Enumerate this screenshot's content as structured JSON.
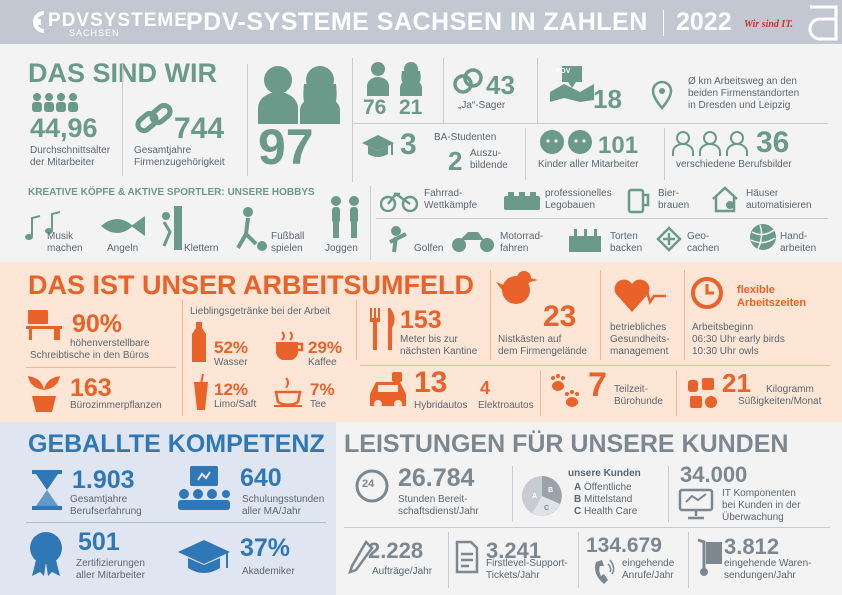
{
  "header": {
    "logo_name": "PDVSYSTEME",
    "logo_sub": "SACHSEN",
    "title": "PDV-SYSTEME SACHSEN IN ZAHLEN",
    "year": "2022",
    "slogan": "Wir sind IT."
  },
  "colors": {
    "teal": "#6b9a8b",
    "orange": "#e8622a",
    "blue": "#2f77b5",
    "grey": "#7d8790"
  },
  "section1": {
    "title": "DAS SIND WIR",
    "age_value": "44,96",
    "age_label1": "Durchschnittsalter",
    "age_label2": "der Mitarbeiter",
    "years_value": "744",
    "years_label1": "Gesamtjahre",
    "years_label2": "Firmenzugehörigkeit",
    "total": "97",
    "men": "76",
    "women": "21",
    "yes_value": "43",
    "yes_label": "„Ja“-Sager",
    "pdv_badge": "PDV",
    "commute_value": "18",
    "commute_label1": "Ø km Arbeitsweg an den",
    "commute_label2": "beiden Firmenstandorten",
    "commute_label3": "in Dresden und Leipzig",
    "ba_value": "3",
    "ba_label": "BA-Studenten",
    "azubi_value": "2",
    "azubi_label1": "Auszu-",
    "azubi_label2": "bildende",
    "kids_value": "101",
    "kids_label": "Kinder aller Mitarbeiter",
    "jobs_value": "36",
    "jobs_label": "verschiedene Berufsbilder",
    "hobbies_title": "KREATIVE KÖPFE & AKTIVE SPORTLER: UNSERE HOBBYS",
    "hobbies": [
      {
        "l1": "Musik",
        "l2": "machen"
      },
      {
        "l1": "Angeln",
        "l2": ""
      },
      {
        "l1": "Klettern",
        "l2": ""
      },
      {
        "l1": "Fußball",
        "l2": "spielen"
      },
      {
        "l1": "Joggen",
        "l2": ""
      },
      {
        "l1": "Fahrrad-",
        "l2": "Wettkämpfe"
      },
      {
        "l1": "professionelles",
        "l2": "Legobauen"
      },
      {
        "l1": "Bier-",
        "l2": "brauen"
      },
      {
        "l1": "Häuser",
        "l2": "automatisieren"
      },
      {
        "l1": "Golfen",
        "l2": ""
      },
      {
        "l1": "Motorrad-",
        "l2": "fahren"
      },
      {
        "l1": "Torten",
        "l2": "backen"
      },
      {
        "l1": "Geo-",
        "l2": "cachen"
      },
      {
        "l1": "Hand-",
        "l2": "arbeiten"
      }
    ]
  },
  "section2": {
    "title": "DAS IST UNSER ARBEITSUMFELD",
    "desks_value": "90%",
    "desks_label1": "höhenverstellbare",
    "desks_label2": "Schreibtische in den Büros",
    "plants_value": "163",
    "plants_label": "Bürozimmerpflanzen",
    "drinks_title": "Lieblingsgetränke bei der Arbeit",
    "water_value": "52%",
    "water_label": "Wasser",
    "coffee_value": "29%",
    "coffee_label": "Kaffee",
    "limo_value": "12%",
    "limo_label": "Limo/Saft",
    "tea_value": "7%",
    "tea_label": "Tee",
    "canteen_value": "153",
    "canteen_label1": "Meter bis zur",
    "canteen_label2": "nächsten Kantine",
    "nest_value": "23",
    "nest_label1": "Nistkästen auf",
    "nest_label2": "dem Firmengelände",
    "health_label1": "betriebliches",
    "health_label2": "Gesundheits-",
    "health_label3": "management",
    "flex_title1": "flexible",
    "flex_title2": "Arbeitszeiten",
    "flex_label1": "Arbeitsbeginn",
    "flex_label2": "06:30 Uhr early birds",
    "flex_label3": "10:30 Uhr owls",
    "hybrid_value": "13",
    "hybrid_label": "Hybridautos",
    "electric_value": "4",
    "electric_label": "Elektroautos",
    "dogs_value": "7",
    "dogs_label1": "Teilzeit-",
    "dogs_label2": "Bürohunde",
    "sweets_value": "21",
    "sweets_label1": "Kilogramm",
    "sweets_label2": "Süßigkeiten/Monat"
  },
  "section3": {
    "title": "GEBALLTE KOMPETENZ",
    "exp_value": "1.903",
    "exp_label1": "Gesamtjahre",
    "exp_label2": "Berufserfahrung",
    "train_value": "640",
    "train_label1": "Schulungsstunden",
    "train_label2": "aller MA/Jahr",
    "cert_value": "501",
    "cert_label1": "Zertifizierungen",
    "cert_label2": "aller Mitarbeiter",
    "acad_value": "37%",
    "acad_label": "Akademiker"
  },
  "section4": {
    "title": "LEISTUNGEN FÜR UNSERE KUNDEN",
    "standby_value": "26.784",
    "standby_label1": "Stunden Bereit-",
    "standby_label2": "schaftsdienst/Jahr",
    "standby_icon_text": "24",
    "customers_title": "unsere Kunden",
    "customers": [
      {
        "key": "A",
        "label": "Öffentliche"
      },
      {
        "key": "B",
        "label": "Mittelstand"
      },
      {
        "key": "C",
        "label": "Health Care"
      }
    ],
    "it_value": "34.000",
    "it_label1": "IT Komponenten",
    "it_label2": "bei Kunden in der",
    "it_label3": "Überwachung",
    "orders_value": "2.228",
    "orders_label": "Aufträge/Jahr",
    "tickets_value": "3.241",
    "tickets_label1": "Firstlevel-Support-",
    "tickets_label2": "Tickets/Jahr",
    "calls_value": "134.679",
    "calls_label1": "eingehende",
    "calls_label2": "Anrufe/Jahr",
    "goods_value": "3.812",
    "goods_label1": "eingehende Waren-",
    "goods_label2": "sendungen/Jahr"
  }
}
